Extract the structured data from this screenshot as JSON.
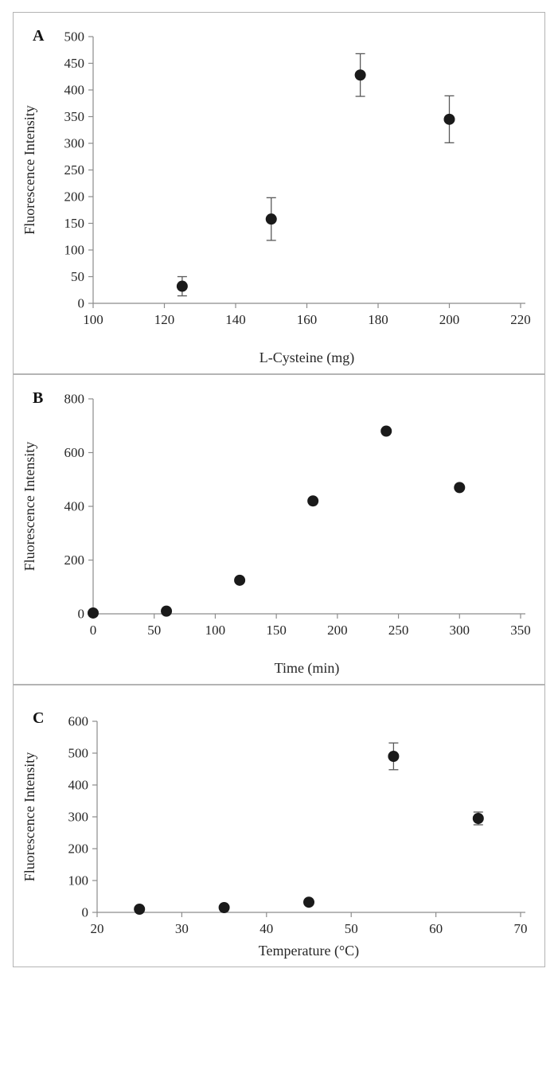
{
  "style": {
    "point_color": "#1a1a1a",
    "axis_color": "#8c8c8c",
    "error_bar_color": "#595959",
    "text_color": "#262626"
  },
  "chart_data": [
    {
      "type": "scatter",
      "panel_label": "A",
      "title": "",
      "xlabel": "L-Cysteine (mg)",
      "ylabel": "Fluorescence Intensity",
      "xlim": [
        100,
        220
      ],
      "ylim": [
        0,
        500
      ],
      "xticks": [
        100,
        120,
        140,
        160,
        180,
        200,
        220
      ],
      "yticks": [
        0,
        50,
        100,
        150,
        200,
        250,
        300,
        350,
        400,
        450,
        500
      ],
      "grid": false,
      "legend": false,
      "points": [
        {
          "x": 125,
          "y": 32,
          "err": 18
        },
        {
          "x": 150,
          "y": 158,
          "err": 40
        },
        {
          "x": 175,
          "y": 428,
          "err": 40
        },
        {
          "x": 200,
          "y": 345,
          "err": 44
        }
      ]
    },
    {
      "type": "scatter",
      "panel_label": "B",
      "title": "",
      "xlabel": "Time (min)",
      "ylabel": "Fluorescence Intensity",
      "xlim": [
        0,
        350
      ],
      "ylim": [
        0,
        800
      ],
      "xticks": [
        0,
        50,
        100,
        150,
        200,
        250,
        300,
        350
      ],
      "yticks": [
        0,
        200,
        400,
        600,
        800
      ],
      "grid": false,
      "legend": false,
      "points": [
        {
          "x": 0,
          "y": 3
        },
        {
          "x": 60,
          "y": 10
        },
        {
          "x": 120,
          "y": 125
        },
        {
          "x": 180,
          "y": 420
        },
        {
          "x": 240,
          "y": 680
        },
        {
          "x": 300,
          "y": 470
        }
      ]
    },
    {
      "type": "scatter",
      "panel_label": "C",
      "title": "",
      "xlabel": "Temperature (°C)",
      "ylabel": "Fluorescence Intensity",
      "xlim": [
        20,
        70
      ],
      "ylim": [
        0,
        600
      ],
      "xticks": [
        20,
        30,
        40,
        50,
        60,
        70
      ],
      "yticks": [
        0,
        100,
        200,
        300,
        400,
        500,
        600
      ],
      "grid": false,
      "legend": false,
      "points": [
        {
          "x": 25,
          "y": 10
        },
        {
          "x": 35,
          "y": 15
        },
        {
          "x": 45,
          "y": 32
        },
        {
          "x": 55,
          "y": 490,
          "err": 42
        },
        {
          "x": 65,
          "y": 295,
          "err": 20
        }
      ]
    }
  ]
}
